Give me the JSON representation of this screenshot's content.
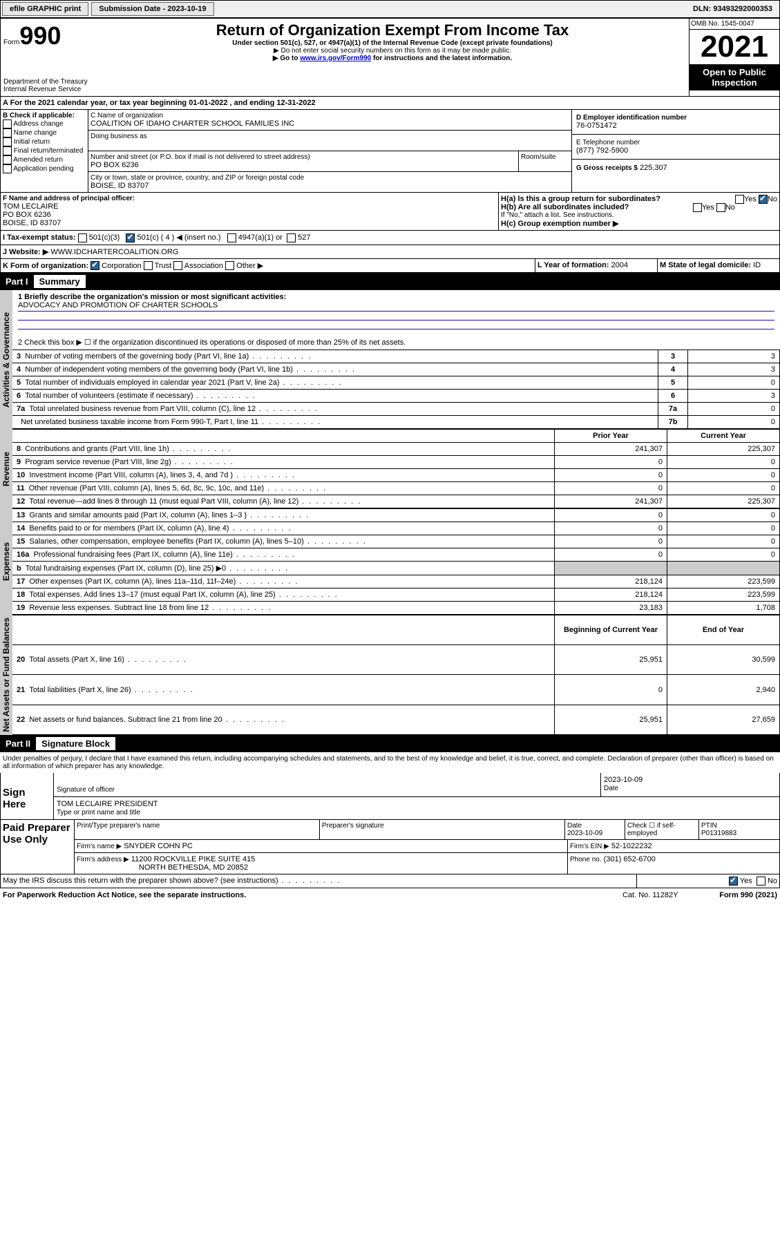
{
  "topbar": {
    "efile": "efile GRAPHIC print",
    "sub_label": "Submission Date - ",
    "sub_date": "2023-10-19",
    "dln": "DLN: 93493292000353"
  },
  "hdr": {
    "form_prefix": "Form",
    "form_no": "990",
    "title": "Return of Organization Exempt From Income Tax",
    "sub1": "Under section 501(c), 527, or 4947(a)(1) of the Internal Revenue Code (except private foundations)",
    "sub2": "▶ Do not enter social security numbers on this form as it may be made public.",
    "sub3_pre": "▶ Go to ",
    "sub3_link": "www.irs.gov/Form990",
    "sub3_post": " for instructions and the latest information.",
    "dept": "Department of the Treasury",
    "irs": "Internal Revenue Service",
    "omb": "OMB No. 1545-0047",
    "year": "2021",
    "open": "Open to Public Inspection"
  },
  "A": {
    "line": "A For the 2021 calendar year, or tax year beginning 01-01-2022   , and ending 12-31-2022"
  },
  "B": {
    "title": "B Check if applicable:",
    "items": [
      "Address change",
      "Name change",
      "Initial return",
      "Final return/terminated",
      "Amended return",
      "Application pending"
    ]
  },
  "C": {
    "name_lbl": "C Name of organization",
    "name": "COALITION OF IDAHO CHARTER SCHOOL FAMILIES INC",
    "dba_lbl": "Doing business as",
    "addr_lbl": "Number and street (or P.O. box if mail is not delivered to street address)",
    "room": "Room/suite",
    "addr": "PO BOX 6236",
    "city_lbl": "City or town, state or province, country, and ZIP or foreign postal code",
    "city": "BOISE, ID  83707"
  },
  "D": {
    "lbl": "D Employer identification number",
    "val": "76-0751472"
  },
  "E": {
    "lbl": "E Telephone number",
    "val": "(877) 792-5900"
  },
  "G": {
    "lbl": "G Gross receipts $",
    "val": "225,307"
  },
  "F": {
    "lbl": "F  Name and address of principal officer:",
    "name": "TOM LECLAIRE",
    "addr1": "PO BOX 6236",
    "addr2": "BOISE, ID  83707"
  },
  "H": {
    "a": "H(a)  Is this a group return for subordinates?",
    "b": "H(b)  Are all subordinates included?",
    "b2": "If \"No,\" attach a list. See instructions.",
    "c": "H(c)  Group exemption number ▶",
    "yes": "Yes",
    "no": "No"
  },
  "I": {
    "lbl": "I    Tax-exempt status:",
    "c3": "501(c)(3)",
    "c": "501(c) ( 4 ) ◀ (insert no.)",
    "a1": "4947(a)(1) or",
    "s527": "527"
  },
  "J": {
    "lbl": "J   Website: ▶",
    "val": "WWW.IDCHARTERCOALITION.ORG"
  },
  "K": {
    "lbl": "K Form of organization:",
    "corp": "Corporation",
    "trust": "Trust",
    "assoc": "Association",
    "other": "Other ▶"
  },
  "L": {
    "lbl": "L Year of formation: ",
    "val": "2004"
  },
  "M": {
    "lbl": "M State of legal domicile: ",
    "val": "ID"
  },
  "partI": {
    "label": "Part I",
    "title": "Summary"
  },
  "sideA": "Activities & Governance",
  "sideR": "Revenue",
  "sideE": "Expenses",
  "sideN": "Net Assets or Fund Balances",
  "s1": {
    "q": "1   Briefly describe the organization's mission or most significant activities:",
    "a": "ADVOCACY AND PROMOTION OF CHARTER SCHOOLS"
  },
  "s2": "2   Check this box ▶ ☐  if the organization discontinued its operations or disposed of more than 25% of its net assets.",
  "govRows": [
    {
      "n": "3",
      "t": "Number of voting members of the governing body (Part VI, line 1a)",
      "b": "3",
      "v": "3"
    },
    {
      "n": "4",
      "t": "Number of independent voting members of the governing body (Part VI, line 1b)",
      "b": "4",
      "v": "3"
    },
    {
      "n": "5",
      "t": "Total number of individuals employed in calendar year 2021 (Part V, line 2a)",
      "b": "5",
      "v": "0"
    },
    {
      "n": "6",
      "t": "Total number of volunteers (estimate if necessary)",
      "b": "6",
      "v": "3"
    },
    {
      "n": "7a",
      "t": "Total unrelated business revenue from Part VIII, column (C), line 12",
      "b": "7a",
      "v": "0"
    },
    {
      "n": "",
      "t": "Net unrelated business taxable income from Form 990-T, Part I, line 11",
      "b": "7b",
      "v": "0"
    }
  ],
  "colH": {
    "prior": "Prior Year",
    "curr": "Current Year",
    "beg": "Beginning of Current Year",
    "end": "End of Year"
  },
  "rev": [
    {
      "n": "8",
      "t": "Contributions and grants (Part VIII, line 1h)",
      "p": "241,307",
      "c": "225,307"
    },
    {
      "n": "9",
      "t": "Program service revenue (Part VIII, line 2g)",
      "p": "0",
      "c": "0"
    },
    {
      "n": "10",
      "t": "Investment income (Part VIII, column (A), lines 3, 4, and 7d )",
      "p": "0",
      "c": "0"
    },
    {
      "n": "11",
      "t": "Other revenue (Part VIII, column (A), lines 5, 6d, 8c, 9c, 10c, and 11e)",
      "p": "0",
      "c": "0"
    },
    {
      "n": "12",
      "t": "Total revenue—add lines 8 through 11 (must equal Part VIII, column (A), line 12)",
      "p": "241,307",
      "c": "225,307"
    }
  ],
  "exp": [
    {
      "n": "13",
      "t": "Grants and similar amounts paid (Part IX, column (A), lines 1–3 )",
      "p": "0",
      "c": "0"
    },
    {
      "n": "14",
      "t": "Benefits paid to or for members (Part IX, column (A), line 4)",
      "p": "0",
      "c": "0"
    },
    {
      "n": "15",
      "t": "Salaries, other compensation, employee benefits (Part IX, column (A), lines 5–10)",
      "p": "0",
      "c": "0"
    },
    {
      "n": "16a",
      "t": "Professional fundraising fees (Part IX, column (A), line 11e)",
      "p": "0",
      "c": "0"
    },
    {
      "n": "b",
      "t": "Total fundraising expenses (Part IX, column (D), line 25) ▶0",
      "p": "",
      "c": "",
      "shade": true
    },
    {
      "n": "17",
      "t": "Other expenses (Part IX, column (A), lines 11a–11d, 11f–24e)",
      "p": "218,124",
      "c": "223,599"
    },
    {
      "n": "18",
      "t": "Total expenses. Add lines 13–17 (must equal Part IX, column (A), line 25)",
      "p": "218,124",
      "c": "223,599"
    },
    {
      "n": "19",
      "t": "Revenue less expenses. Subtract line 18 from line 12",
      "p": "23,183",
      "c": "1,708"
    }
  ],
  "net": [
    {
      "n": "20",
      "t": "Total assets (Part X, line 16)",
      "p": "25,951",
      "c": "30,599"
    },
    {
      "n": "21",
      "t": "Total liabilities (Part X, line 26)",
      "p": "0",
      "c": "2,940"
    },
    {
      "n": "22",
      "t": "Net assets or fund balances. Subtract line 21 from line 20",
      "p": "25,951",
      "c": "27,659"
    }
  ],
  "partII": {
    "label": "Part II",
    "title": "Signature Block"
  },
  "decl": "Under penalties of perjury, I declare that I have examined this return, including accompanying schedules and statements, and to the best of my knowledge and belief, it is true, correct, and complete. Declaration of preparer (other than officer) is based on all information of which preparer has any knowledge.",
  "sign": {
    "here": "Sign Here",
    "sig": "Signature of officer",
    "date_lbl": "Date",
    "date": "2023-10-09",
    "name": "TOM LECLAIRE  PRESIDENT",
    "name_lbl": "Type or print name and title"
  },
  "paid": {
    "title": "Paid Preparer Use Only",
    "col1": "Print/Type preparer's name",
    "col2": "Preparer's signature",
    "col3": "Date",
    "date": "2023-10-09",
    "check": "Check ☐ if self-employed",
    "ptin_lbl": "PTIN",
    "ptin": "P01319883",
    "firm_lbl": "Firm's name    ▶",
    "firm": "SNYDER COHN PC",
    "ein_lbl": "Firm's EIN ▶",
    "ein": "52-1022232",
    "faddr_lbl": "Firm's address ▶",
    "faddr1": "11200 ROCKVILLE PIKE SUITE 415",
    "faddr2": "NORTH BETHESDA, MD  20852",
    "phone_lbl": "Phone no.",
    "phone": "(301) 652-6700"
  },
  "foot": {
    "q": "May the IRS discuss this return with the preparer shown above? (see instructions)",
    "yes": "Yes",
    "no": "No",
    "pra": "For Paperwork Reduction Act Notice, see the separate instructions.",
    "cat": "Cat. No. 11282Y",
    "form": "Form 990 (2021)"
  }
}
